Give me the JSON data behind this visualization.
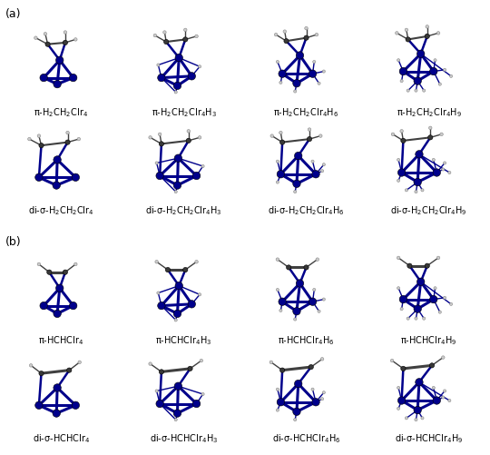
{
  "background": "#ffffff",
  "section_a_label": "(a)",
  "section_b_label": "(b)",
  "row_labels_a": [
    [
      "π-H$_2$CH$_2$CIr$_4$",
      "π-H$_2$CH$_2$CIr$_4$H$_3$",
      "π-H$_2$CH$_2$CIr$_4$H$_6$",
      "π-H$_2$CH$_2$CIr$_4$H$_9$"
    ],
    [
      "di-σ-H$_2$CH$_2$CIr$_4$",
      "di-σ-H$_2$CH$_2$CIr$_4$H$_3$",
      "di-σ-H$_2$CH$_2$CIr$_4$H$_6$",
      "di-σ-H$_2$CH$_2$CIr$_4$H$_9$"
    ]
  ],
  "row_labels_b": [
    [
      "π-HCHCIr$_4$",
      "π-HCHCIr$_4$H$_3$",
      "π-HCHCIr$_4$H$_6$",
      "π-HCHCIr$_4$H$_9$"
    ],
    [
      "di-σ-HCHCIr$_4$",
      "di-σ-HCHCIr$_4$H$_3$",
      "di-σ-HCHCIr$_4$H$_6$",
      "di-σ-HCHCIr$_4$H$_9$"
    ]
  ],
  "ir_color": "#00008B",
  "c_color": "#383838",
  "h_color": "#cccccc",
  "bond_color_ir": "#00008B",
  "bond_color_ch": "#404040",
  "label_fontsize": 7.0,
  "section_label_fontsize": 9
}
